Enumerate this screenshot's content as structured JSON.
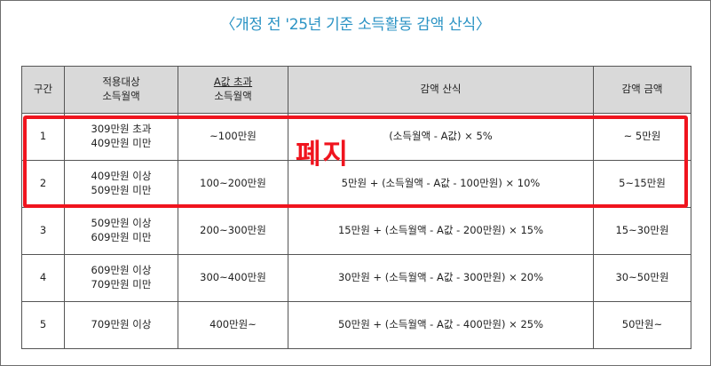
{
  "title": "〈개정 전 '25년 기준 소득활동 감액 산식〉",
  "headers": {
    "col1": "구간",
    "col2_line1": "적용대상",
    "col2_line2": "소득월액",
    "col3_line1": "A값 초과",
    "col3_line2": "소득월액",
    "col4": "감액 산식",
    "col5": "감액 금액"
  },
  "rows": [
    {
      "no": "1",
      "target_line1": "309만원 초과",
      "target_line2": "409만원 미만",
      "excess": "~100만원",
      "formula": "(소득월액 - A값) × 5%",
      "amount": "~ 5만원"
    },
    {
      "no": "2",
      "target_line1": "409만원 이상",
      "target_line2": "509만원 미만",
      "excess": "100~200만원",
      "formula": "5만원 + (소득월액 - A값 - 100만원) × 10%",
      "amount": "5~15만원"
    },
    {
      "no": "3",
      "target_line1": "509만원 이상",
      "target_line2": "609만원 미만",
      "excess": "200~300만원",
      "formula": "15만원 + (소득월액 - A값 - 200만원) × 15%",
      "amount": "15~30만원"
    },
    {
      "no": "4",
      "target_line1": "609만원 이상",
      "target_line2": "709만원 미만",
      "excess": "300~400만원",
      "formula": "30만원 + (소득월액 - A값 - 300만원) × 20%",
      "amount": "30~50만원"
    },
    {
      "no": "5",
      "target_line1": "709만원 이상",
      "target_line2": "",
      "excess": "400만원~",
      "formula": "50만원 + (소득월액 - A값 - 400만원) × 25%",
      "amount": "50만원~"
    }
  ],
  "annotation": "폐지",
  "colors": {
    "title": "#2b93c4",
    "highlight": "#f0141e",
    "header_bg": "#d9d9d9"
  }
}
